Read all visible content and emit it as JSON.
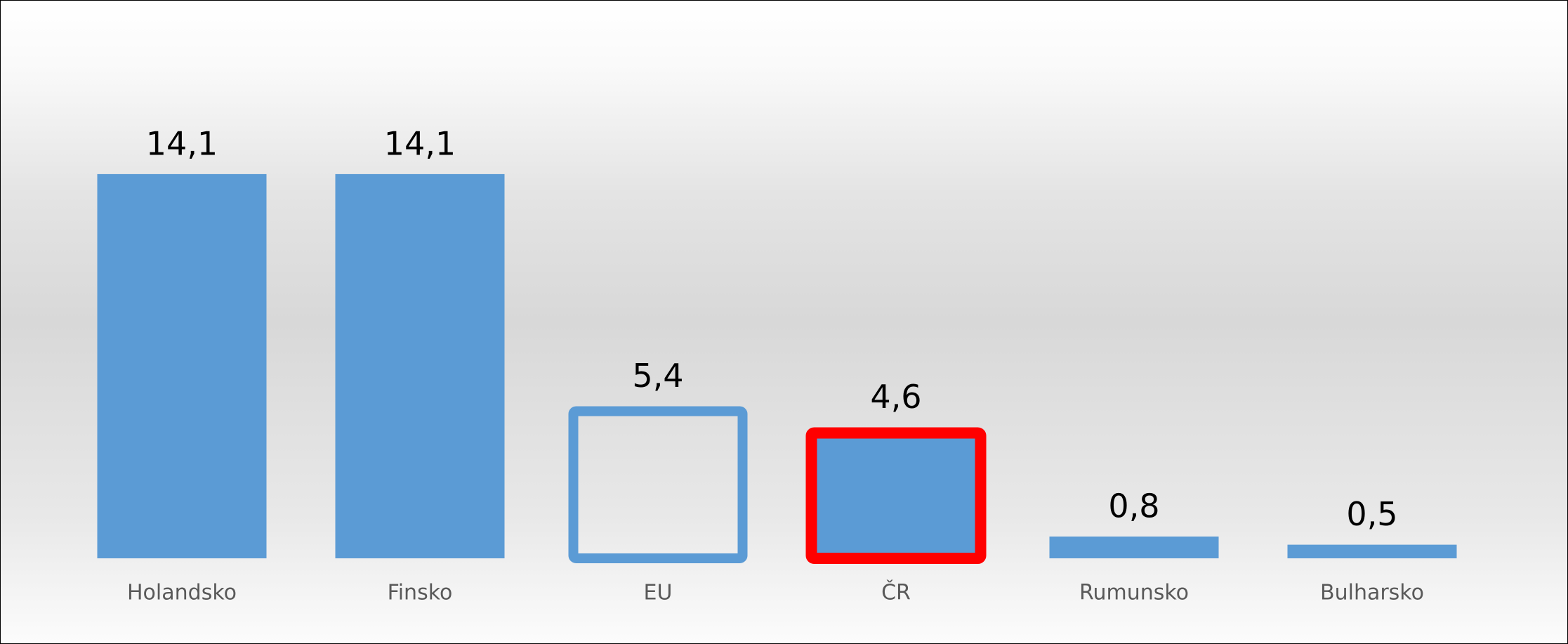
{
  "chart_data": {
    "type": "bar",
    "categories": [
      "Holandsko",
      "Finsko",
      "EU",
      "ČR",
      "Rumunsko",
      "Bulharsko"
    ],
    "values": [
      14.1,
      14.1,
      5.4,
      4.6,
      0.8,
      0.5
    ],
    "value_labels": [
      "14,1",
      "14,1",
      "5,4",
      "4,6",
      "0,8",
      "0,5"
    ],
    "fills": [
      "#5b9bd5",
      "#5b9bd5",
      "none",
      "#5b9bd5",
      "#5b9bd5",
      "#5b9bd5"
    ],
    "edgecolors": [
      "#5b9bd5",
      "#5b9bd5",
      "#5b9bd5",
      "#ff0000",
      "#5b9bd5",
      "#5b9bd5"
    ]
  }
}
